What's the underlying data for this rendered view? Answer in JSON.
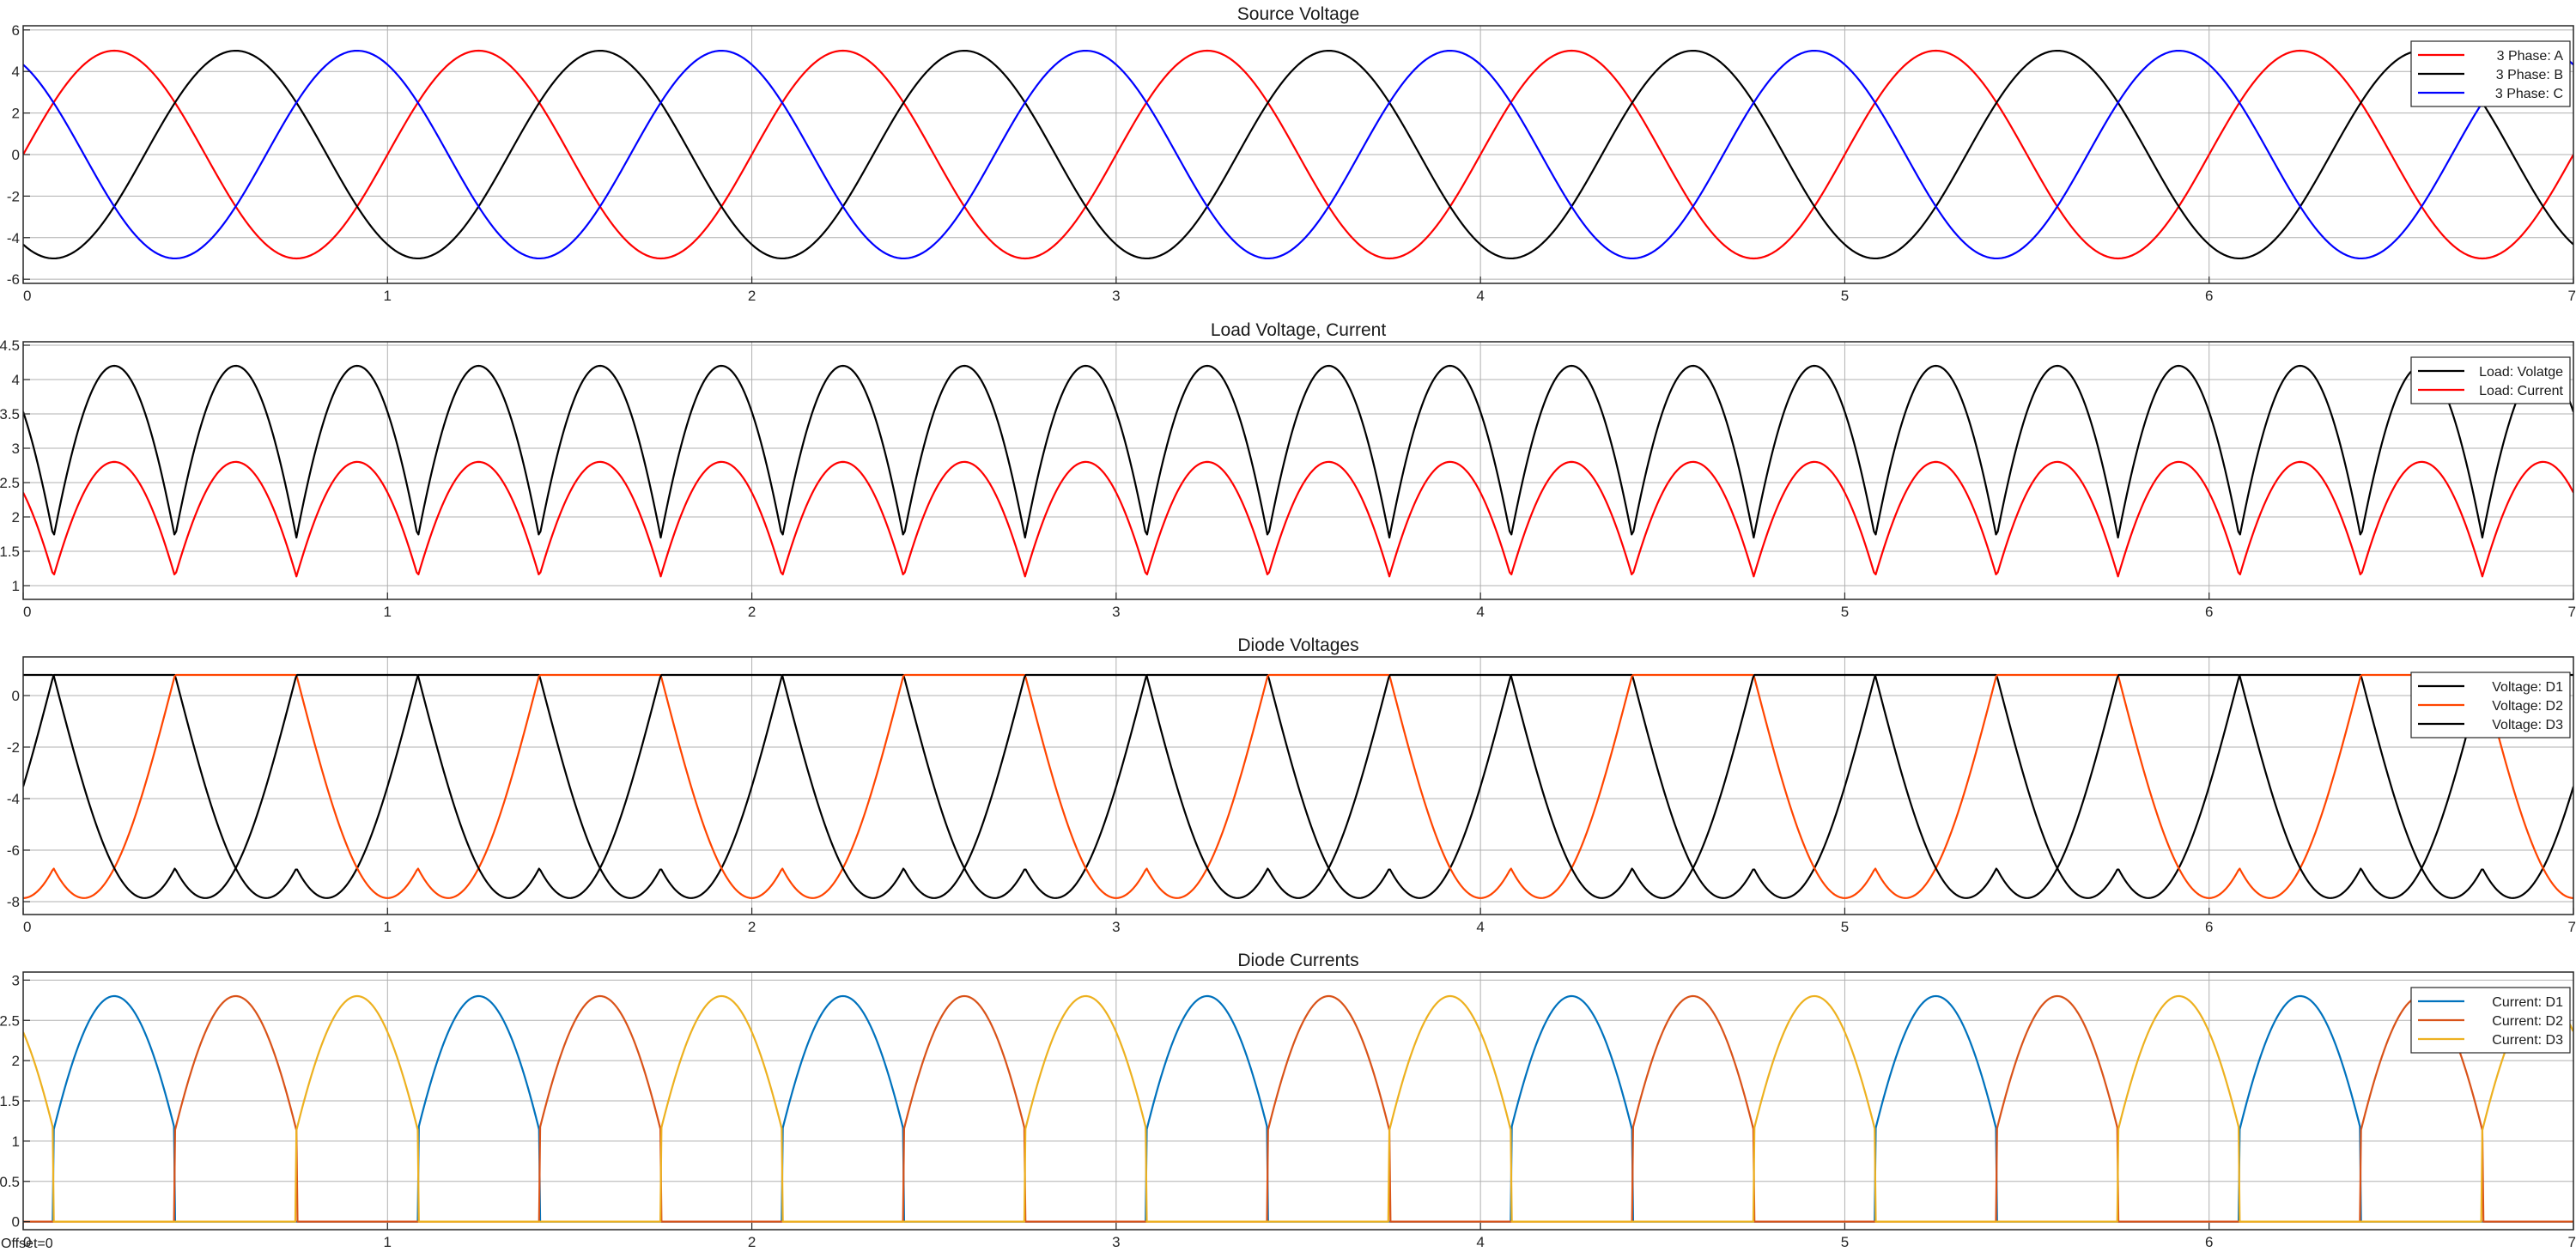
{
  "footer": {
    "offset": "Offset=0"
  },
  "chart_data": [
    {
      "type": "line",
      "title": "Source Voltage",
      "xlim": [
        0,
        7
      ],
      "ylim": [
        -6.2,
        6.2
      ],
      "xticks": [
        0,
        1,
        2,
        3,
        4,
        5,
        6,
        7
      ],
      "yticks": [
        -6,
        -4,
        -2,
        0,
        2,
        4,
        6
      ],
      "grid": true,
      "legend_position": "top-right",
      "sample": {
        "x_start": 0,
        "x_end": 7,
        "x_step": 0.01
      },
      "series": [
        {
          "name": "3 Phase: A",
          "color": "#ff0000",
          "model": {
            "kind": "sine",
            "amplitude": 5,
            "period": 1,
            "phase_deg": 0
          }
        },
        {
          "name": "3 Phase: B",
          "color": "#000000",
          "model": {
            "kind": "sine",
            "amplitude": 5,
            "period": 1,
            "phase_deg": 120
          }
        },
        {
          "name": "3 Phase: C",
          "color": "#0000ff",
          "model": {
            "kind": "sine",
            "amplitude": 5,
            "period": 1,
            "phase_deg": -120
          }
        }
      ]
    },
    {
      "type": "line",
      "title": "Load Voltage, Current",
      "xlim": [
        0,
        7
      ],
      "ylim": [
        0.8,
        4.55
      ],
      "xticks": [
        0,
        1,
        2,
        3,
        4,
        5,
        6,
        7
      ],
      "yticks": [
        1,
        1.5,
        2,
        2.5,
        3,
        3.5,
        4,
        4.5
      ],
      "grid": true,
      "legend_position": "top-right",
      "sample": {
        "x_start": 0,
        "x_end": 7,
        "x_step": 0.005
      },
      "series": [
        {
          "name": "Load: Volatge",
          "color": "#000000",
          "model": {
            "kind": "phase_max",
            "amplitude": 5,
            "period": 1,
            "offset": -0.8,
            "gain": 1
          }
        },
        {
          "name": "Load: Current",
          "color": "#ff0000",
          "model": {
            "kind": "phase_max",
            "amplitude": 5,
            "period": 1,
            "offset": -0.8,
            "gain": 0.667
          }
        }
      ]
    },
    {
      "type": "line",
      "title": "Diode Voltages",
      "xlim": [
        0,
        7
      ],
      "ylim": [
        -8.5,
        1.5
      ],
      "xticks": [
        0,
        1,
        2,
        3,
        4,
        5,
        6,
        7
      ],
      "yticks": [
        -8,
        -6,
        -4,
        -2,
        0
      ],
      "grid": true,
      "legend_position": "top-right",
      "sample": {
        "x_start": 0,
        "x_end": 7,
        "x_step": 0.004
      },
      "series": [
        {
          "name": "Voltage: D1",
          "color": "#000000",
          "model": {
            "kind": "diode_voltage",
            "phase_index": 0,
            "amplitude": 5,
            "period": 1,
            "forward_drop": 0.8
          }
        },
        {
          "name": "Voltage: D2",
          "color": "#ff4500",
          "model": {
            "kind": "diode_voltage",
            "phase_index": 1,
            "amplitude": 5,
            "period": 1,
            "forward_drop": 0.8
          }
        },
        {
          "name": "Voltage: D3",
          "color": "#000000",
          "model": {
            "kind": "diode_voltage",
            "phase_index": 2,
            "amplitude": 5,
            "period": 1,
            "forward_drop": 0.8
          }
        }
      ]
    },
    {
      "type": "line",
      "title": "Diode Currents",
      "xlim": [
        0,
        7
      ],
      "ylim": [
        -0.1,
        3.1
      ],
      "xticks": [
        0,
        1,
        2,
        3,
        4,
        5,
        6,
        7
      ],
      "yticks": [
        0,
        0.5,
        1,
        1.5,
        2,
        2.5,
        3
      ],
      "grid": true,
      "legend_position": "top-right",
      "sample": {
        "x_start": 0,
        "x_end": 7,
        "x_step": 0.003
      },
      "series": [
        {
          "name": "Current: D1",
          "color": "#0072bd",
          "model": {
            "kind": "diode_current",
            "phase_index": 0,
            "amplitude": 5,
            "period": 1,
            "forward_drop": 0.8,
            "gain": 0.667
          }
        },
        {
          "name": "Current: D2",
          "color": "#d95319",
          "model": {
            "kind": "diode_current",
            "phase_index": 1,
            "amplitude": 5,
            "period": 1,
            "forward_drop": 0.8,
            "gain": 0.667
          }
        },
        {
          "name": "Current: D3",
          "color": "#edb120",
          "model": {
            "kind": "diode_current",
            "phase_index": 2,
            "amplitude": 5,
            "period": 1,
            "forward_drop": 0.8,
            "gain": 0.667
          }
        }
      ]
    }
  ]
}
